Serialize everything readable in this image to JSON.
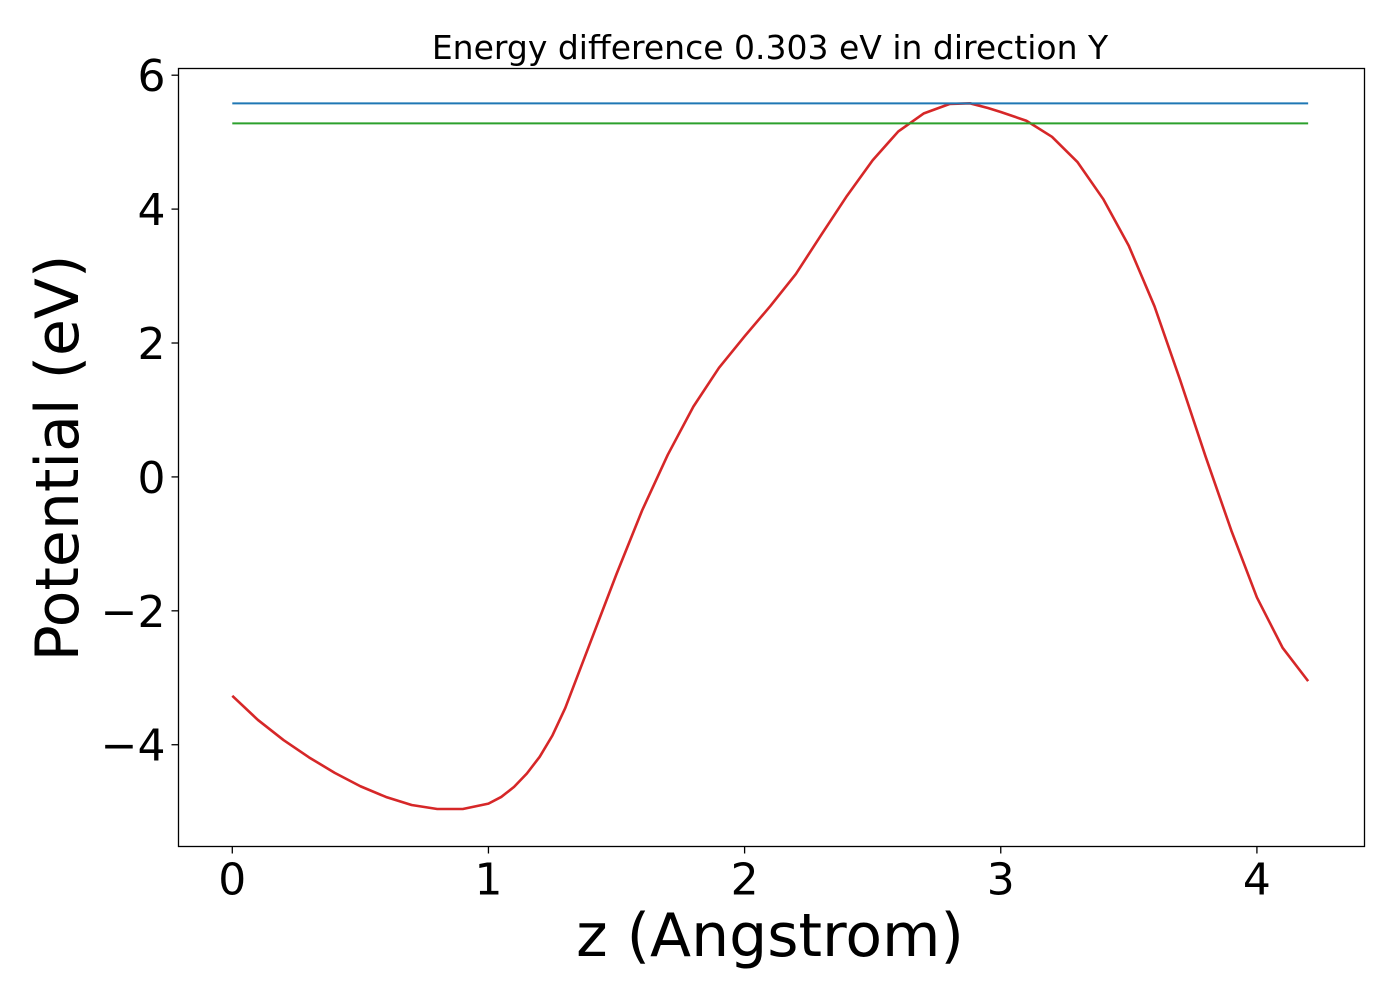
{
  "chart_data": {
    "type": "line",
    "title": "Energy difference 0.303 eV in direction Y",
    "xlabel": "z (Angstrom)",
    "ylabel": "Potential (eV)",
    "xlim": [
      -0.21,
      4.42
    ],
    "ylim": [
      -5.52,
      6.1
    ],
    "xticks": [
      0,
      1,
      2,
      3,
      4
    ],
    "xtick_labels": [
      "0",
      "1",
      "2",
      "3",
      "4"
    ],
    "yticks": [
      -4,
      -2,
      0,
      2,
      4,
      6
    ],
    "ytick_labels": [
      "−4",
      "−2",
      "0",
      "2",
      "4",
      "6"
    ],
    "grid": false,
    "series": [
      {
        "color": "#d62728",
        "x": [
          0,
          0.1,
          0.2,
          0.3,
          0.4,
          0.5,
          0.6,
          0.7,
          0.8,
          0.9,
          1.0,
          1.05,
          1.1,
          1.15,
          1.2,
          1.25,
          1.3,
          1.4,
          1.5,
          1.6,
          1.7,
          1.8,
          1.9,
          2.0,
          2.1,
          2.2,
          2.3,
          2.4,
          2.5,
          2.6,
          2.7,
          2.8,
          2.88,
          2.95,
          3.0,
          3.1,
          3.2,
          3.3,
          3.4,
          3.5,
          3.6,
          3.7,
          3.8,
          3.9,
          4.0,
          4.1,
          4.2
        ],
        "y": [
          -3.27,
          -3.63,
          -3.93,
          -4.19,
          -4.42,
          -4.62,
          -4.78,
          -4.9,
          -4.96,
          -4.96,
          -4.88,
          -4.78,
          -4.63,
          -4.43,
          -4.18,
          -3.86,
          -3.45,
          -2.45,
          -1.45,
          -0.5,
          0.33,
          1.05,
          1.63,
          2.1,
          2.55,
          3.03,
          3.62,
          4.2,
          4.73,
          5.16,
          5.43,
          5.57,
          5.58,
          5.51,
          5.45,
          5.32,
          5.08,
          4.7,
          4.15,
          3.45,
          2.55,
          1.45,
          0.3,
          -0.8,
          -1.8,
          -2.55,
          -3.05
        ]
      },
      {
        "color": "#1f77b4",
        "x": [
          0,
          4.2
        ],
        "y": [
          5.58,
          5.58
        ]
      },
      {
        "color": "#2ca02c",
        "x": [
          0,
          4.2
        ],
        "y": [
          5.28,
          5.28
        ]
      }
    ]
  }
}
